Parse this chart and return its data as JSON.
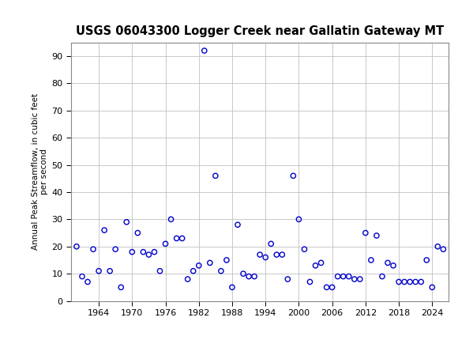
{
  "title": "USGS 06043300 Logger Creek near Gallatin Gateway MT",
  "ylabel_line1": "Annual Peak Streamflow, in cubic feet",
  "ylabel_line2": "per second",
  "header_color": "#1a6b3c",
  "plot_bg": "#ffffff",
  "fig_bg": "#ffffff",
  "marker_color": "#0000cc",
  "marker_facecolor": "none",
  "marker_style": "o",
  "marker_size": 4.5,
  "marker_linewidth": 1.0,
  "grid_color": "#c0c0c0",
  "xlim": [
    1959,
    2027
  ],
  "ylim": [
    0,
    95
  ],
  "yticks": [
    0,
    10,
    20,
    30,
    40,
    50,
    60,
    70,
    80,
    90
  ],
  "xticks": [
    1964,
    1970,
    1976,
    1982,
    1988,
    1994,
    2000,
    2006,
    2012,
    2018,
    2024
  ],
  "data": [
    [
      1960,
      20
    ],
    [
      1961,
      9
    ],
    [
      1962,
      7
    ],
    [
      1963,
      19
    ],
    [
      1964,
      11
    ],
    [
      1965,
      26
    ],
    [
      1966,
      11
    ],
    [
      1967,
      19
    ],
    [
      1968,
      5
    ],
    [
      1969,
      29
    ],
    [
      1970,
      18
    ],
    [
      1971,
      25
    ],
    [
      1972,
      18
    ],
    [
      1973,
      17
    ],
    [
      1974,
      18
    ],
    [
      1975,
      11
    ],
    [
      1976,
      21
    ],
    [
      1977,
      30
    ],
    [
      1978,
      23
    ],
    [
      1979,
      23
    ],
    [
      1980,
      8
    ],
    [
      1981,
      11
    ],
    [
      1982,
      13
    ],
    [
      1983,
      92
    ],
    [
      1984,
      14
    ],
    [
      1985,
      46
    ],
    [
      1986,
      11
    ],
    [
      1987,
      15
    ],
    [
      1988,
      5
    ],
    [
      1989,
      28
    ],
    [
      1990,
      10
    ],
    [
      1991,
      9
    ],
    [
      1992,
      9
    ],
    [
      1993,
      17
    ],
    [
      1994,
      16
    ],
    [
      1995,
      21
    ],
    [
      1996,
      17
    ],
    [
      1997,
      17
    ],
    [
      1998,
      8
    ],
    [
      1999,
      46
    ],
    [
      2000,
      30
    ],
    [
      2001,
      19
    ],
    [
      2002,
      7
    ],
    [
      2003,
      13
    ],
    [
      2004,
      14
    ],
    [
      2005,
      5
    ],
    [
      2006,
      5
    ],
    [
      2007,
      9
    ],
    [
      2008,
      9
    ],
    [
      2009,
      9
    ],
    [
      2010,
      8
    ],
    [
      2011,
      8
    ],
    [
      2012,
      25
    ],
    [
      2013,
      15
    ],
    [
      2014,
      24
    ],
    [
      2015,
      9
    ],
    [
      2016,
      14
    ],
    [
      2017,
      13
    ],
    [
      2018,
      7
    ],
    [
      2019,
      7
    ],
    [
      2020,
      7
    ],
    [
      2021,
      7
    ],
    [
      2022,
      7
    ],
    [
      2023,
      15
    ],
    [
      2024,
      5
    ],
    [
      2025,
      20
    ],
    [
      2026,
      19
    ]
  ]
}
